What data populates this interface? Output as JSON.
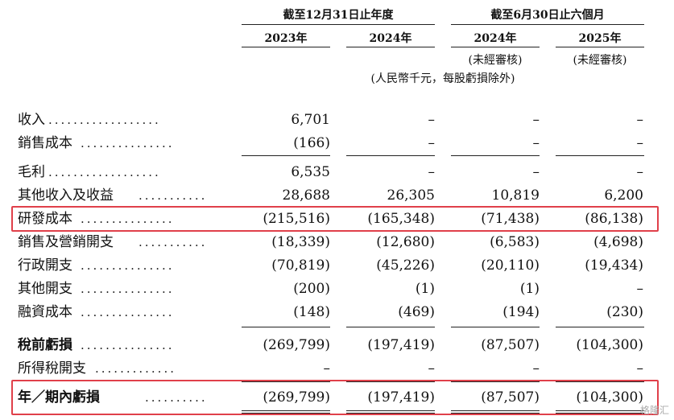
{
  "header": {
    "group_year": "截至12月31日止年度",
    "group_half": "截至6月30日止六個月",
    "col_2023": "2023年",
    "col_2024": "2024年",
    "col_2024h": "2024年",
    "col_2025h": "2025年",
    "unaudited_1": "(未經審核)",
    "unaudited_2": "(未經審核)",
    "unit_note": "(人民幣千元，每股虧損除外)"
  },
  "rows": [
    {
      "label": "收入",
      "dots": "..................",
      "v": [
        "6,701",
        "–",
        "–",
        "–"
      ]
    },
    {
      "label": "銷售成本",
      "dots": "...............",
      "v": [
        "(166)",
        "–",
        "–",
        "–"
      ]
    },
    {
      "label": "毛利",
      "dots": "..................",
      "v": [
        "6,535",
        "–",
        "–",
        "–"
      ]
    },
    {
      "label": "其他收入及收益",
      "dots": "...........",
      "v": [
        "28,688",
        "26,305",
        "10,819",
        "6,200"
      ]
    },
    {
      "label": "研發成本",
      "dots": "...............",
      "v": [
        "(215,516)",
        "(165,348)",
        "(71,438)",
        "(86,138)"
      ]
    },
    {
      "label": "銷售及營銷開支",
      "dots": "...........",
      "v": [
        "(18,339)",
        "(12,680)",
        "(6,583)",
        "(4,698)"
      ]
    },
    {
      "label": "行政開支",
      "dots": "...............",
      "v": [
        "(70,819)",
        "(45,226)",
        "(20,110)",
        "(19,434)"
      ]
    },
    {
      "label": "其他開支",
      "dots": "...............",
      "v": [
        "(200)",
        "(1)",
        "(1)",
        "–"
      ]
    },
    {
      "label": "融資成本",
      "dots": "...............",
      "v": [
        "(148)",
        "(469)",
        "(194)",
        "(230)"
      ]
    },
    {
      "label": "稅前虧損",
      "dots": "...............",
      "v": [
        "(269,799)",
        "(197,419)",
        "(87,507)",
        "(104,300)"
      ]
    },
    {
      "label": "所得稅開支",
      "dots": ".............",
      "v": [
        "–",
        "–",
        "–",
        "–"
      ]
    },
    {
      "label": "年／期內虧損",
      "dots": "..........",
      "v": [
        "(269,799)",
        "(197,419)",
        "(87,507)",
        "(104,300)"
      ]
    }
  ],
  "watermark": "格隆汇",
  "colors": {
    "highlight": "#e0404a"
  }
}
